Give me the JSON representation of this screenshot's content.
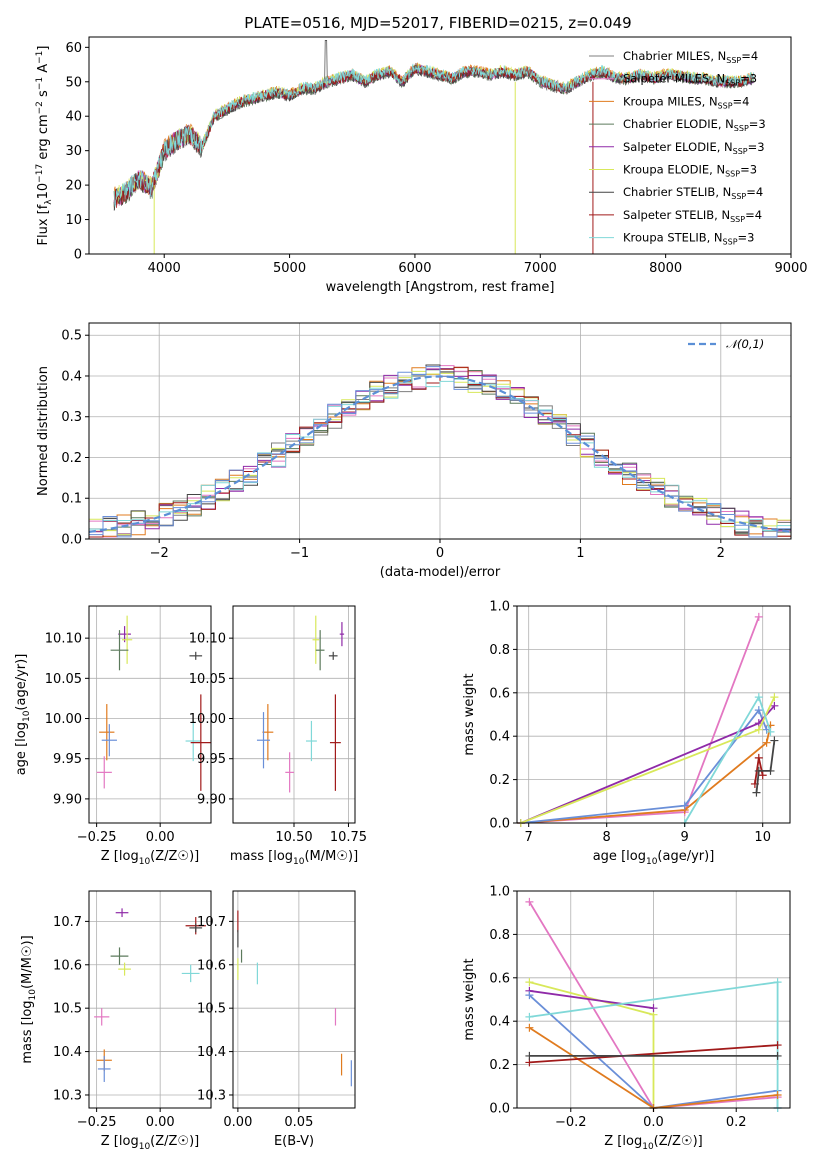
{
  "colors": {
    "chabrier_miles": "#7f7f7f",
    "salpeter_miles": "#e377c2",
    "kroupa_miles": "#e07b1f",
    "chabrier_elodie": "#5c7a5c",
    "salpeter_elodie": "#8f2aa8",
    "kroupa_elodie": "#d8e85a",
    "chabrier_stelib": "#444444",
    "salpeter_stelib": "#a11a1a",
    "kroupa_stelib": "#80d8d8",
    "blue": "#6a8fd8",
    "gauss": "#5b8fd6"
  },
  "chart_data": [
    {
      "id": "spectrum",
      "type": "line",
      "title": "PLATE=0516, MJD=52017, FIBERID=0215, z=0.049",
      "xlabel": "wavelength [Angstrom, rest frame]",
      "ylabel": "Flux [f_λ10^-17 erg cm^-2 s^-1 A^-1]",
      "xlim": [
        3400,
        9000
      ],
      "ylim": [
        0,
        63
      ],
      "xticks": [
        4000,
        5000,
        6000,
        7000,
        8000,
        9000
      ],
      "yticks": [
        0,
        10,
        20,
        30,
        40,
        50,
        60
      ],
      "x": [
        3600,
        3700,
        3800,
        3900,
        4000,
        4100,
        4200,
        4300,
        4400,
        4500,
        4600,
        4700,
        4800,
        4900,
        5000,
        5100,
        5200,
        5300,
        5400,
        5500,
        5600,
        5700,
        5800,
        5900,
        6000,
        6100,
        6200,
        6300,
        6400,
        6500,
        6600,
        6700,
        6800,
        6900,
        7000,
        7100,
        7200,
        7300,
        7400,
        7500,
        7600,
        7700,
        7800,
        7900,
        8000,
        8100,
        8200,
        8300,
        8400,
        8500,
        8600,
        8700
      ],
      "y": [
        16,
        18,
        22,
        19,
        30,
        33,
        35,
        31,
        40,
        42,
        44,
        45,
        46,
        47,
        46,
        48,
        48,
        50,
        51,
        52,
        50,
        52,
        53,
        50,
        54,
        53,
        52,
        51,
        53,
        53,
        52,
        53,
        52,
        53,
        50,
        49,
        48,
        50,
        52,
        53,
        51,
        51,
        52,
        51,
        52,
        52,
        51,
        51,
        50,
        50,
        50,
        51
      ],
      "legend": [
        {
          "label": "Chabrier MILES, N",
          "sub": "SSP",
          "tail": "=4",
          "color": "chabrier_miles"
        },
        {
          "label": "Salpeter MILES, N",
          "sub": "SSP",
          "tail": "=3",
          "color": "salpeter_miles"
        },
        {
          "label": "Kroupa MILES, N",
          "sub": "SSP",
          "tail": "=4",
          "color": "kroupa_miles"
        },
        {
          "label": "Chabrier ELODIE, N",
          "sub": "SSP",
          "tail": "=3",
          "color": "chabrier_elodie"
        },
        {
          "label": "Salpeter ELODIE, N",
          "sub": "SSP",
          "tail": "=3",
          "color": "salpeter_elodie"
        },
        {
          "label": "Kroupa ELODIE, N",
          "sub": "SSP",
          "tail": "=3",
          "color": "kroupa_elodie"
        },
        {
          "label": "Chabrier STELIB, N",
          "sub": "SSP",
          "tail": "=4",
          "color": "chabrier_stelib"
        },
        {
          "label": "Salpeter STELIB, N",
          "sub": "SSP",
          "tail": "=4",
          "color": "salpeter_stelib"
        },
        {
          "label": "Kroupa STELIB, N",
          "sub": "SSP",
          "tail": "=3",
          "color": "kroupa_stelib"
        }
      ],
      "drops": [
        3920,
        6800,
        7420
      ]
    },
    {
      "id": "residuals",
      "type": "line",
      "xlabel": "(data-model)/error",
      "ylabel": "Normed distribution",
      "xlim": [
        -2.5,
        2.5
      ],
      "ylim": [
        0,
        0.53
      ],
      "xticks": [
        -2,
        -1,
        0,
        1,
        2
      ],
      "xticklabels": [
        "−2",
        "−1",
        "0",
        "1",
        "2"
      ],
      "yticks": [
        0.0,
        0.1,
        0.2,
        0.3,
        0.4,
        0.5
      ],
      "yticklabels": [
        "0.0",
        "0.1",
        "0.2",
        "0.3",
        "0.4",
        "0.5"
      ],
      "legend": "𝒩(0,1)",
      "bin_width": 0.1
    },
    {
      "id": "age_vs_Z",
      "type": "scatter",
      "xlabel": "Z [log10(Z/Z☉)]",
      "ylabel": "age [log10(age/yr)]",
      "xlim": [
        -0.28,
        0.2
      ],
      "ylim": [
        9.87,
        10.14
      ],
      "xticks": [
        -0.25,
        0.0
      ],
      "xticklabels": [
        "−0.25",
        "0.00"
      ],
      "yticks": [
        9.9,
        9.95,
        10.0,
        10.05,
        10.1
      ],
      "yticklabels": [
        "9.90",
        "9.95",
        "10.00",
        "10.05",
        "10.10"
      ],
      "points": [
        {
          "color": "salpeter_elodie",
          "x": -0.14,
          "y": 10.105,
          "xe": 0.05,
          "ye": 0.02
        },
        {
          "color": "kroupa_elodie",
          "x": -0.13,
          "y": 10.098,
          "xe": 0.04,
          "ye": 0.06
        },
        {
          "color": "chabrier_elodie",
          "x": -0.16,
          "y": 10.085,
          "xe": 0.07,
          "ye": 0.05
        },
        {
          "color": "chabrier_stelib",
          "x": 0.14,
          "y": 10.078,
          "xe": 0.05,
          "ye": 0.01
        },
        {
          "color": "kroupa_miles",
          "x": -0.21,
          "y": 9.983,
          "xe": 0.06,
          "ye": 0.07
        },
        {
          "color": "blue",
          "x": -0.2,
          "y": 9.973,
          "xe": 0.06,
          "ye": 0.04
        },
        {
          "color": "kroupa_stelib",
          "x": 0.13,
          "y": 9.972,
          "xe": 0.06,
          "ye": 0.05
        },
        {
          "color": "salpeter_stelib",
          "x": 0.16,
          "y": 9.97,
          "xe": 0.08,
          "ye": 0.12
        },
        {
          "color": "salpeter_miles",
          "x": -0.22,
          "y": 9.933,
          "xe": 0.06,
          "ye": 0.04
        }
      ]
    },
    {
      "id": "age_vs_mass",
      "type": "scatter",
      "xlabel": "mass [log10(M/M☉)]",
      "xlim": [
        10.22,
        10.78
      ],
      "ylim": [
        9.87,
        10.14
      ],
      "xticks": [
        10.5,
        10.75
      ],
      "xticklabels": [
        "10.50",
        "10.75"
      ],
      "yticks": [
        9.9,
        9.95,
        10.0,
        10.05,
        10.1
      ],
      "yticklabels": [
        "9.90",
        "9.95",
        "10.00",
        "10.05",
        "10.10"
      ],
      "points": [
        {
          "color": "salpeter_elodie",
          "x": 10.72,
          "y": 10.105,
          "xe": 0.02,
          "ye": 0.03
        },
        {
          "color": "kroupa_elodie",
          "x": 10.6,
          "y": 10.098,
          "xe": 0.03,
          "ye": 0.06
        },
        {
          "color": "chabrier_elodie",
          "x": 10.62,
          "y": 10.085,
          "xe": 0.04,
          "ye": 0.05
        },
        {
          "color": "chabrier_stelib",
          "x": 10.68,
          "y": 10.078,
          "xe": 0.04,
          "ye": 0.01
        },
        {
          "color": "kroupa_miles",
          "x": 10.38,
          "y": 9.983,
          "xe": 0.05,
          "ye": 0.07
        },
        {
          "color": "blue",
          "x": 10.36,
          "y": 9.973,
          "xe": 0.06,
          "ye": 0.07
        },
        {
          "color": "kroupa_stelib",
          "x": 10.58,
          "y": 9.972,
          "xe": 0.05,
          "ye": 0.05
        },
        {
          "color": "salpeter_stelib",
          "x": 10.69,
          "y": 9.97,
          "xe": 0.05,
          "ye": 0.12
        },
        {
          "color": "salpeter_miles",
          "x": 10.48,
          "y": 9.933,
          "xe": 0.04,
          "ye": 0.05
        }
      ]
    },
    {
      "id": "weight_vs_age",
      "type": "line",
      "xlabel": "age [log10(age/yr)]",
      "ylabel": "mass weight",
      "xlim": [
        6.85,
        10.35
      ],
      "ylim": [
        0,
        1.0
      ],
      "xticks": [
        7,
        8,
        9,
        10
      ],
      "xticklabels": [
        "7",
        "8",
        "9",
        "10"
      ],
      "yticks": [
        0.0,
        0.2,
        0.4,
        0.6,
        0.8,
        1.0
      ],
      "yticklabels": [
        "0.0",
        "0.2",
        "0.4",
        "0.6",
        "0.8",
        "1.0"
      ],
      "series": [
        {
          "color": "salpeter_miles",
          "x": [
            6.9,
            9.0,
            9.95
          ],
          "y": [
            0.0,
            0.05,
            0.95
          ]
        },
        {
          "color": "kroupa_miles",
          "x": [
            6.9,
            9.0,
            10.05,
            10.1
          ],
          "y": [
            0.0,
            0.06,
            0.37,
            0.45
          ]
        },
        {
          "color": "blue",
          "x": [
            6.9,
            9.0,
            9.95,
            10.05
          ],
          "y": [
            0.0,
            0.08,
            0.52,
            0.43
          ]
        },
        {
          "color": "salpeter_elodie",
          "x": [
            6.9,
            9.95,
            10.15
          ],
          "y": [
            0.0,
            0.46,
            0.54
          ]
        },
        {
          "color": "kroupa_elodie",
          "x": [
            6.9,
            9.95,
            10.15
          ],
          "y": [
            0.0,
            0.43,
            0.58
          ]
        },
        {
          "color": "kroupa_stelib",
          "x": [
            9.0,
            9.95,
            10.1
          ],
          "y": [
            0.0,
            0.58,
            0.42
          ]
        },
        {
          "color": "salpeter_stelib",
          "x": [
            9.9,
            9.95,
            10.0
          ],
          "y": [
            0.18,
            0.3,
            0.22
          ]
        },
        {
          "color": "chabrier_stelib",
          "x": [
            9.92,
            9.95,
            10.1,
            10.15
          ],
          "y": [
            0.14,
            0.24,
            0.24,
            0.38
          ]
        }
      ]
    },
    {
      "id": "mass_vs_Z",
      "type": "scatter",
      "xlabel": "Z [log10(Z/Z☉)]",
      "ylabel": "mass [log10(M/M☉)]",
      "xlim": [
        -0.28,
        0.2
      ],
      "ylim": [
        10.27,
        10.77
      ],
      "xticks": [
        -0.25,
        0.0
      ],
      "xticklabels": [
        "−0.25",
        "0.00"
      ],
      "yticks": [
        10.3,
        10.4,
        10.5,
        10.6,
        10.7
      ],
      "yticklabels": [
        "10.3",
        "10.4",
        "10.5",
        "10.6",
        "10.7"
      ],
      "points": [
        {
          "color": "salpeter_elodie",
          "x": -0.15,
          "y": 10.72,
          "xe": 0.05,
          "ye": 0.02
        },
        {
          "color": "salpeter_stelib",
          "x": 0.14,
          "y": 10.69,
          "xe": 0.08,
          "ye": 0.04
        },
        {
          "color": "chabrier_stelib",
          "x": 0.14,
          "y": 10.685,
          "xe": 0.05,
          "ye": 0.02
        },
        {
          "color": "chabrier_elodie",
          "x": -0.16,
          "y": 10.62,
          "xe": 0.07,
          "ye": 0.04
        },
        {
          "color": "kroupa_elodie",
          "x": -0.14,
          "y": 10.59,
          "xe": 0.05,
          "ye": 0.03
        },
        {
          "color": "kroupa_stelib",
          "x": 0.12,
          "y": 10.58,
          "xe": 0.07,
          "ye": 0.04
        },
        {
          "color": "salpeter_miles",
          "x": -0.23,
          "y": 10.48,
          "xe": 0.06,
          "ye": 0.04
        },
        {
          "color": "kroupa_miles",
          "x": -0.22,
          "y": 10.38,
          "xe": 0.06,
          "ye": 0.05
        },
        {
          "color": "blue",
          "x": -0.22,
          "y": 10.36,
          "xe": 0.05,
          "ye": 0.06
        }
      ]
    },
    {
      "id": "mass_vs_ebv",
      "type": "scatter",
      "xlabel": "E(B-V)",
      "xlim": [
        -0.004,
        0.096
      ],
      "ylim": [
        10.27,
        10.77
      ],
      "xticks": [
        0.0,
        0.05
      ],
      "xticklabels": [
        "0.00",
        "0.05"
      ],
      "yticks": [
        10.3,
        10.4,
        10.5,
        10.6,
        10.7
      ],
      "yticklabels": [
        "10.3",
        "10.4",
        "10.5",
        "10.6",
        "10.7"
      ],
      "points": [
        {
          "color": "salpeter_stelib",
          "x": 0.0,
          "y": 10.7,
          "xe": 0.0,
          "ye": 0.05
        },
        {
          "color": "chabrier_stelib",
          "x": 0.0,
          "y": 10.66,
          "xe": 0.0,
          "ye": 0.04
        },
        {
          "color": "kroupa_elodie",
          "x": 0.0,
          "y": 10.59,
          "xe": 0.0,
          "ye": 0.05
        },
        {
          "color": "chabrier_elodie",
          "x": 0.003,
          "y": 10.62,
          "xe": 0.0,
          "ye": 0.03
        },
        {
          "color": "kroupa_stelib",
          "x": 0.016,
          "y": 10.58,
          "xe": 0.0,
          "ye": 0.05
        },
        {
          "color": "salpeter_miles",
          "x": 0.08,
          "y": 10.48,
          "xe": 0.0,
          "ye": 0.04
        },
        {
          "color": "kroupa_miles",
          "x": 0.085,
          "y": 10.37,
          "xe": 0.0,
          "ye": 0.05
        },
        {
          "color": "blue",
          "x": 0.093,
          "y": 10.35,
          "xe": 0.0,
          "ye": 0.06
        }
      ]
    },
    {
      "id": "weight_vs_Z",
      "type": "line",
      "xlabel": "Z [log10(Z/Z☉)]",
      "ylabel": "mass weight",
      "xlim": [
        -0.33,
        0.33
      ],
      "ylim": [
        0,
        1.0
      ],
      "xticks": [
        -0.2,
        0.0,
        0.2
      ],
      "xticklabels": [
        "−0.2",
        "0.0",
        "0.2"
      ],
      "yticks": [
        0.0,
        0.2,
        0.4,
        0.6,
        0.8,
        1.0
      ],
      "yticklabels": [
        "0.0",
        "0.2",
        "0.4",
        "0.6",
        "0.8",
        "1.0"
      ],
      "series": [
        {
          "color": "salpeter_miles",
          "x": [
            -0.3,
            0.0,
            0.3
          ],
          "y": [
            0.95,
            0.0,
            0.05
          ]
        },
        {
          "color": "kroupa_elodie",
          "x": [
            -0.3,
            0.0,
            0.0
          ],
          "y": [
            0.58,
            0.43,
            0.0
          ]
        },
        {
          "color": "salpeter_elodie",
          "x": [
            -0.3,
            0.0
          ],
          "y": [
            0.54,
            0.46
          ]
        },
        {
          "color": "blue",
          "x": [
            -0.3,
            0.0,
            0.3,
            0.3
          ],
          "y": [
            0.52,
            0.0,
            0.08,
            0.0
          ]
        },
        {
          "color": "kroupa_stelib",
          "x": [
            -0.3,
            0.3,
            0.3
          ],
          "y": [
            0.42,
            0.58,
            0.0
          ]
        },
        {
          "color": "kroupa_miles",
          "x": [
            -0.3,
            0.0,
            0.3
          ],
          "y": [
            0.37,
            0.0,
            0.06
          ]
        },
        {
          "color": "salpeter_stelib",
          "x": [
            -0.3,
            0.3
          ],
          "y": [
            0.21,
            0.29
          ]
        },
        {
          "color": "chabrier_stelib",
          "x": [
            -0.3,
            0.3
          ],
          "y": [
            0.24,
            0.24
          ]
        }
      ]
    }
  ]
}
